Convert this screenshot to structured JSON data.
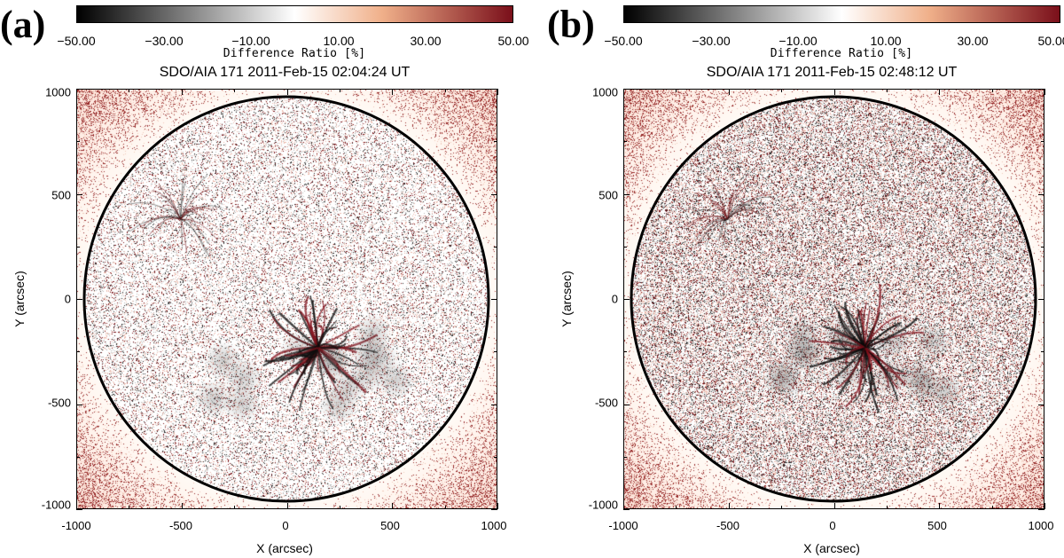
{
  "colorbar": {
    "tick_labels": [
      "−50.00",
      "−30.00",
      "−10.00",
      "10.00",
      "30.00",
      "50.00"
    ],
    "tick_values": [
      -50,
      -30,
      -10,
      10,
      30,
      50
    ],
    "range": [
      -50,
      50
    ],
    "title": "Difference Ratio [%]",
    "colors": {
      "low": "#000000",
      "mid": "#ffffff",
      "high": "#7a0f1a",
      "mid_low": "#9a9a9a",
      "mid_high": "#f0b08a"
    }
  },
  "axes": {
    "xlabel": "X (arcsec)",
    "ylabel": "Y (arcsec)",
    "x_ticks": [
      "-1000",
      "-500",
      "0",
      "500",
      "1000"
    ],
    "y_ticks": [
      "1000",
      "500",
      "0",
      "-500",
      "-1000"
    ],
    "range": [
      -1000,
      1000
    ],
    "limb_radius_arcsec": 980
  },
  "panels": [
    {
      "label": "(a)",
      "title": "SDO/AIA 171 2011-Feb-15 02:04:24 UT",
      "disk_color": "#ffffff",
      "limb_color": "#000000"
    },
    {
      "label": "(b)",
      "title": "SDO/AIA 171 2011-Feb-15 02:48:12 UT",
      "disk_color": "#ffffff",
      "limb_color": "#000000"
    }
  ]
}
